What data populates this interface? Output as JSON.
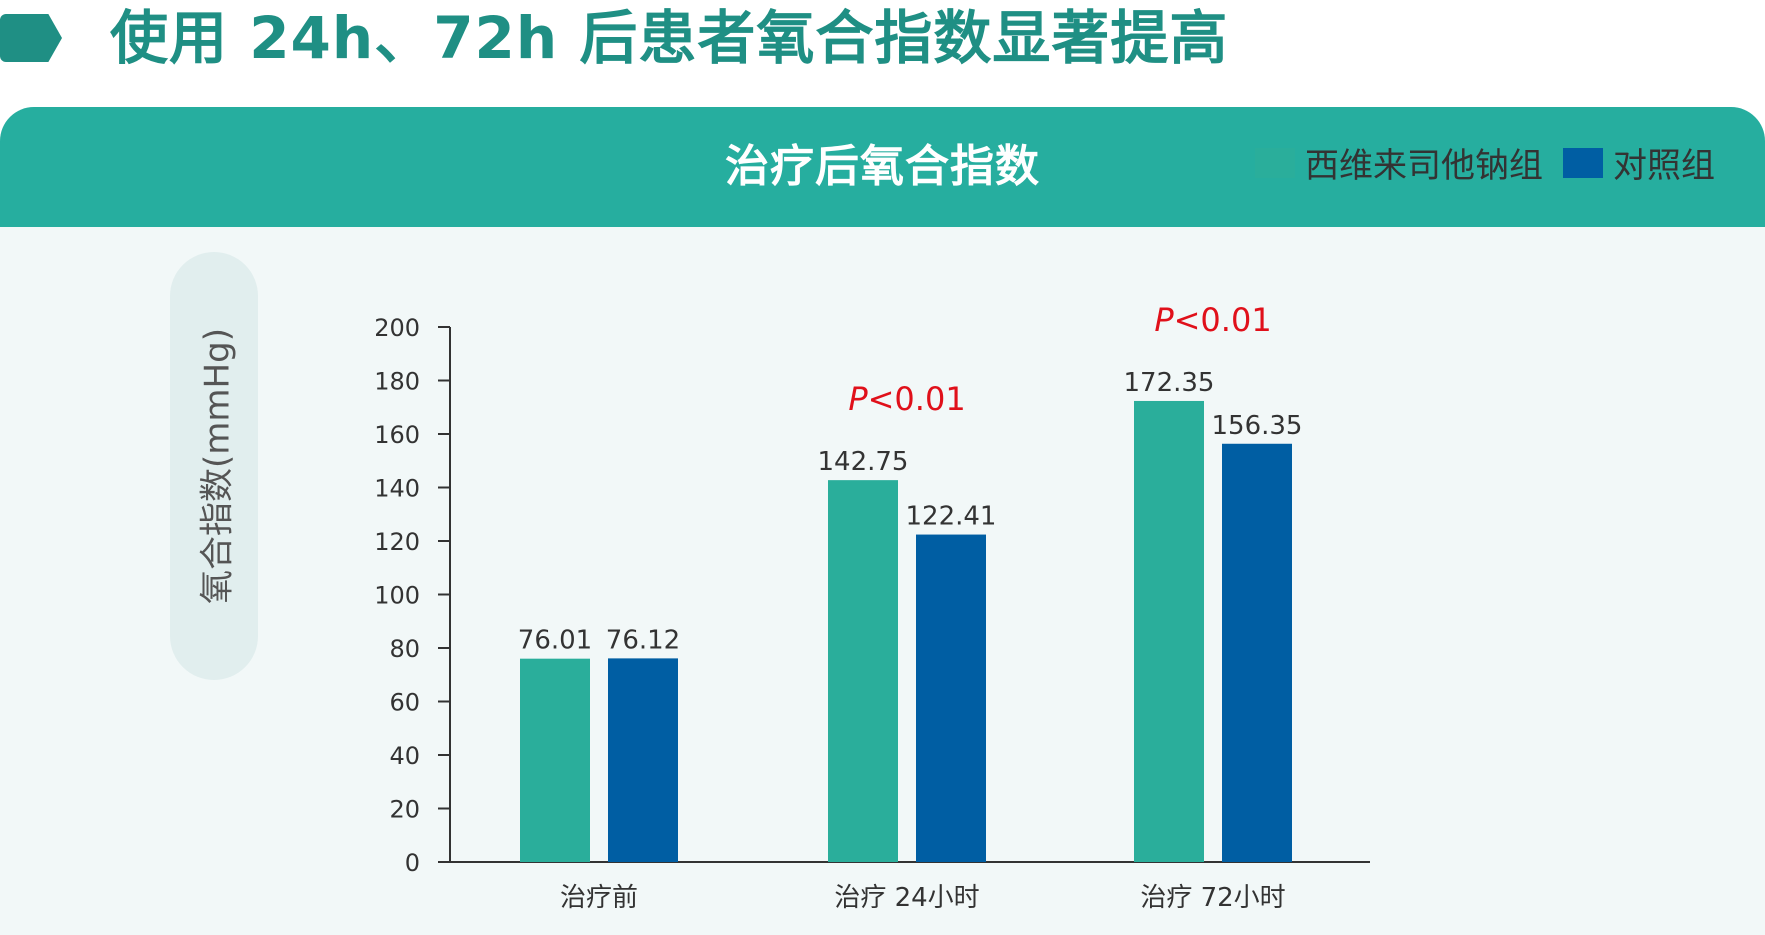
{
  "header": {
    "title": "使用 24h、72h 后患者氧合指数显著提高"
  },
  "panel": {
    "title": "治疗后氧合指数"
  },
  "colors": {
    "brand": "#1f8f84",
    "panel_header": "#26ae9f",
    "panel_bg": "#f2f8f8",
    "series_1": "#2aae9b",
    "series_2": "#005ea3",
    "pvalue": "#e0101a"
  },
  "chart_data": {
    "type": "bar",
    "title": "治疗后氧合指数",
    "xlabel": "",
    "ylabel": "氧合指数(mmHg)",
    "ylim": [
      0,
      200
    ],
    "yticks": [
      0,
      20,
      40,
      60,
      80,
      100,
      120,
      140,
      160,
      180,
      200
    ],
    "categories": [
      "治疗前",
      "治疗 24小时",
      "治疗 72小时"
    ],
    "series": [
      {
        "name": "西维来司他钠组",
        "values": [
          76.01,
          142.75,
          172.35
        ],
        "labels": [
          "76.01",
          "142.75",
          "172.35"
        ],
        "color": "#2aae9b"
      },
      {
        "name": "对照组",
        "values": [
          76.12,
          122.41,
          156.35
        ],
        "labels": [
          "76.12",
          "122.41",
          "156.35"
        ],
        "color": "#005ea3"
      }
    ],
    "annotations": [
      {
        "category": "治疗 24小时",
        "italic": "P",
        "text": "<0.01"
      },
      {
        "category": "治疗 72小时",
        "italic": "P",
        "text": "<0.01"
      }
    ],
    "legend": "top-right",
    "grid": false
  }
}
